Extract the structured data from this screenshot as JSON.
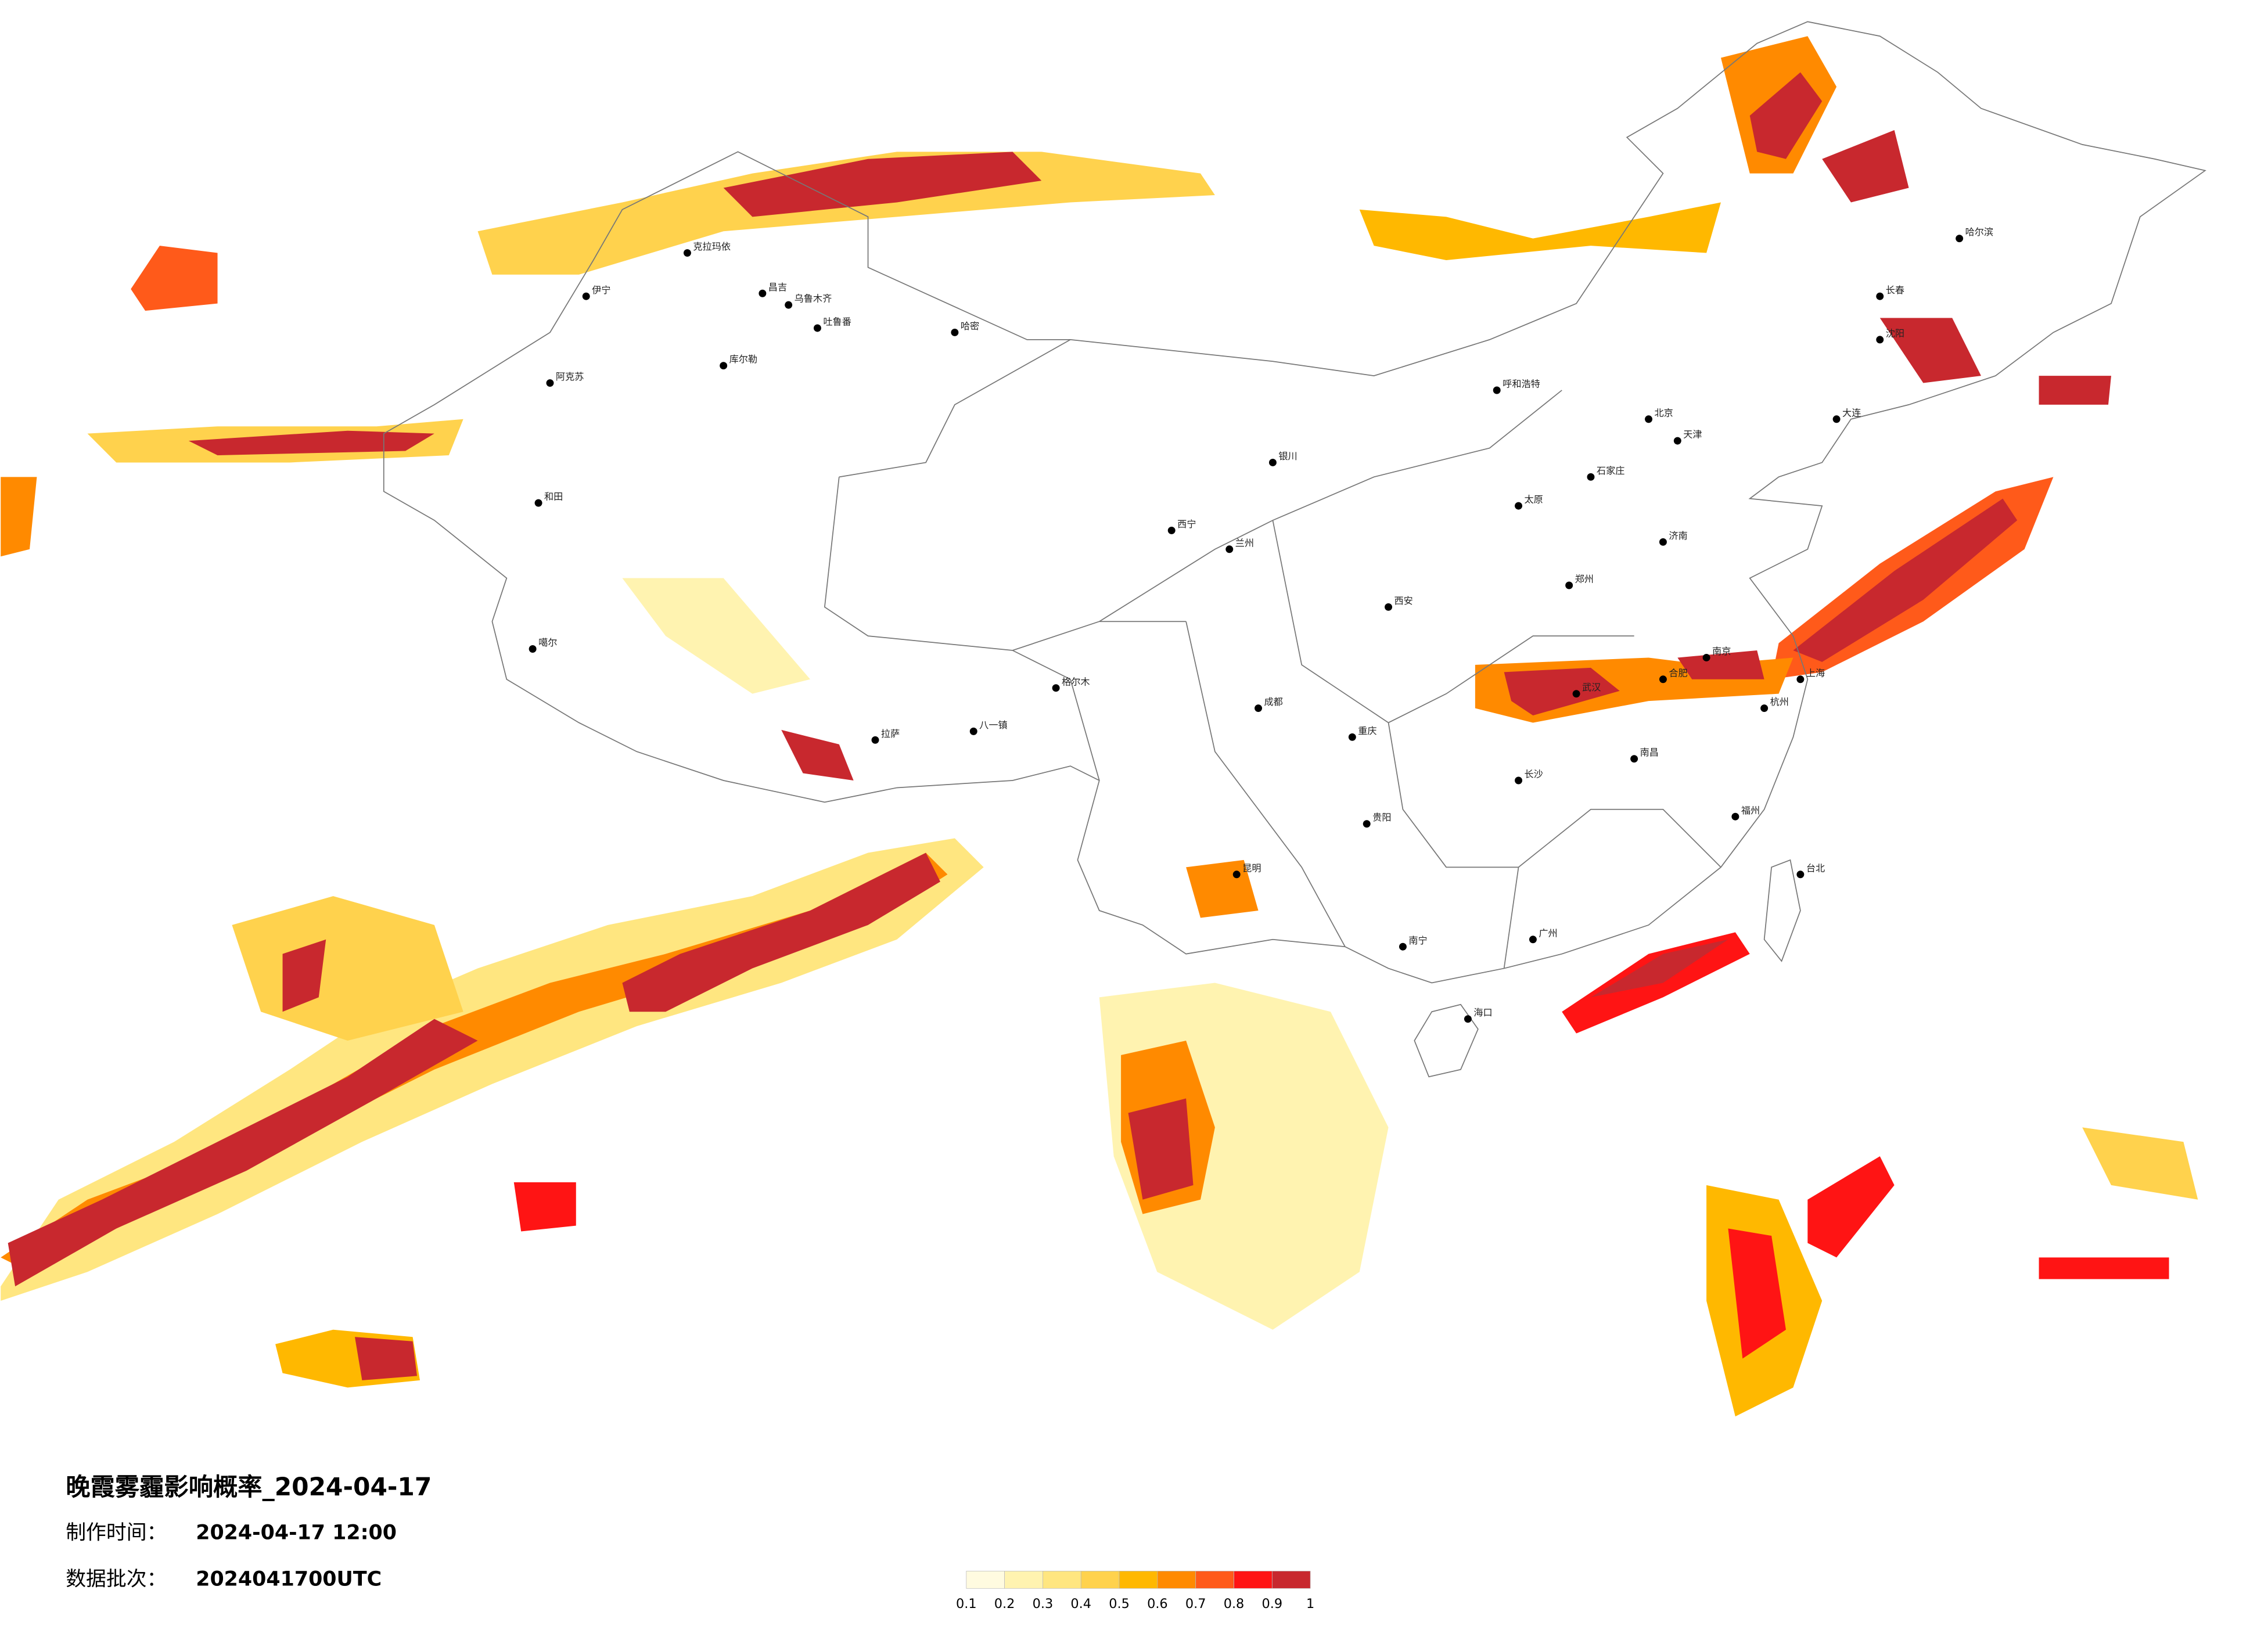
{
  "title": "晚霞雾霾影响概率_2024-04-17",
  "production_time": {
    "label": "制作时间：",
    "value": "2024-04-17 12:00"
  },
  "data_batch": {
    "label": "数据批次：",
    "value": "2024041700UTC"
  },
  "colorbar": {
    "colors": [
      "#fffbe0",
      "#fff3b0",
      "#ffe680",
      "#ffd24d",
      "#ffb800",
      "#ff8a00",
      "#ff5a1a",
      "#ff1414",
      "#c8282e"
    ],
    "ticks": [
      0.1,
      0.2,
      0.3,
      0.4,
      0.5,
      0.6,
      0.7,
      0.8,
      0.9,
      1
    ]
  },
  "cities": [
    "克拉玛依",
    "伊宁",
    "昌吉",
    "乌鲁木齐",
    "吐鲁番",
    "哈密",
    "库尔勒",
    "阿克苏",
    "和田",
    "噶尔",
    "格尔木",
    "拉萨",
    "八一镇",
    "西宁",
    "兰州",
    "银川",
    "呼和浩特",
    "北京",
    "天津",
    "石家庄",
    "太原",
    "郑州",
    "西安",
    "成都",
    "重庆",
    "武汉",
    "长沙",
    "南昌",
    "南京",
    "上海",
    "杭州",
    "福州",
    "广州",
    "昆明",
    "贵阳",
    "南宁",
    "海口",
    "台北",
    "沈阳",
    "长春",
    "哈尔滨",
    "大连",
    "济南",
    "合肥"
  ]
}
